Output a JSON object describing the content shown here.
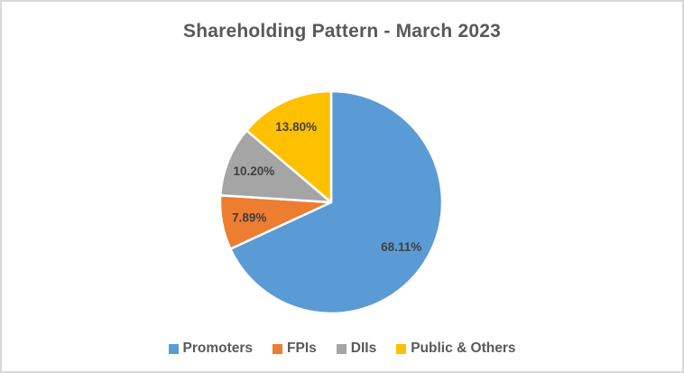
{
  "chart_data": {
    "type": "pie",
    "title": "Shareholding Pattern - March 2023",
    "categories": [
      "Promoters",
      "FPIs",
      "DIIs",
      "Public & Others"
    ],
    "values": [
      68.11,
      7.89,
      10.2,
      13.8
    ],
    "data_labels": [
      "68.11%",
      "7.89%",
      "10.20%",
      "13.80%"
    ],
    "colors": [
      "#5B9BD5",
      "#ED7D31",
      "#A5A5A5",
      "#FFC000"
    ],
    "start_angle_deg": 0,
    "direction": "clockwise",
    "slice_border_color": "#FFFFFF",
    "label_color": "#404040",
    "title_color": "#595959",
    "legend_position": "bottom",
    "legend_text_color": "#595959",
    "background_color": "#FFFFFF",
    "frame_border_color": "#D9D9D9"
  }
}
